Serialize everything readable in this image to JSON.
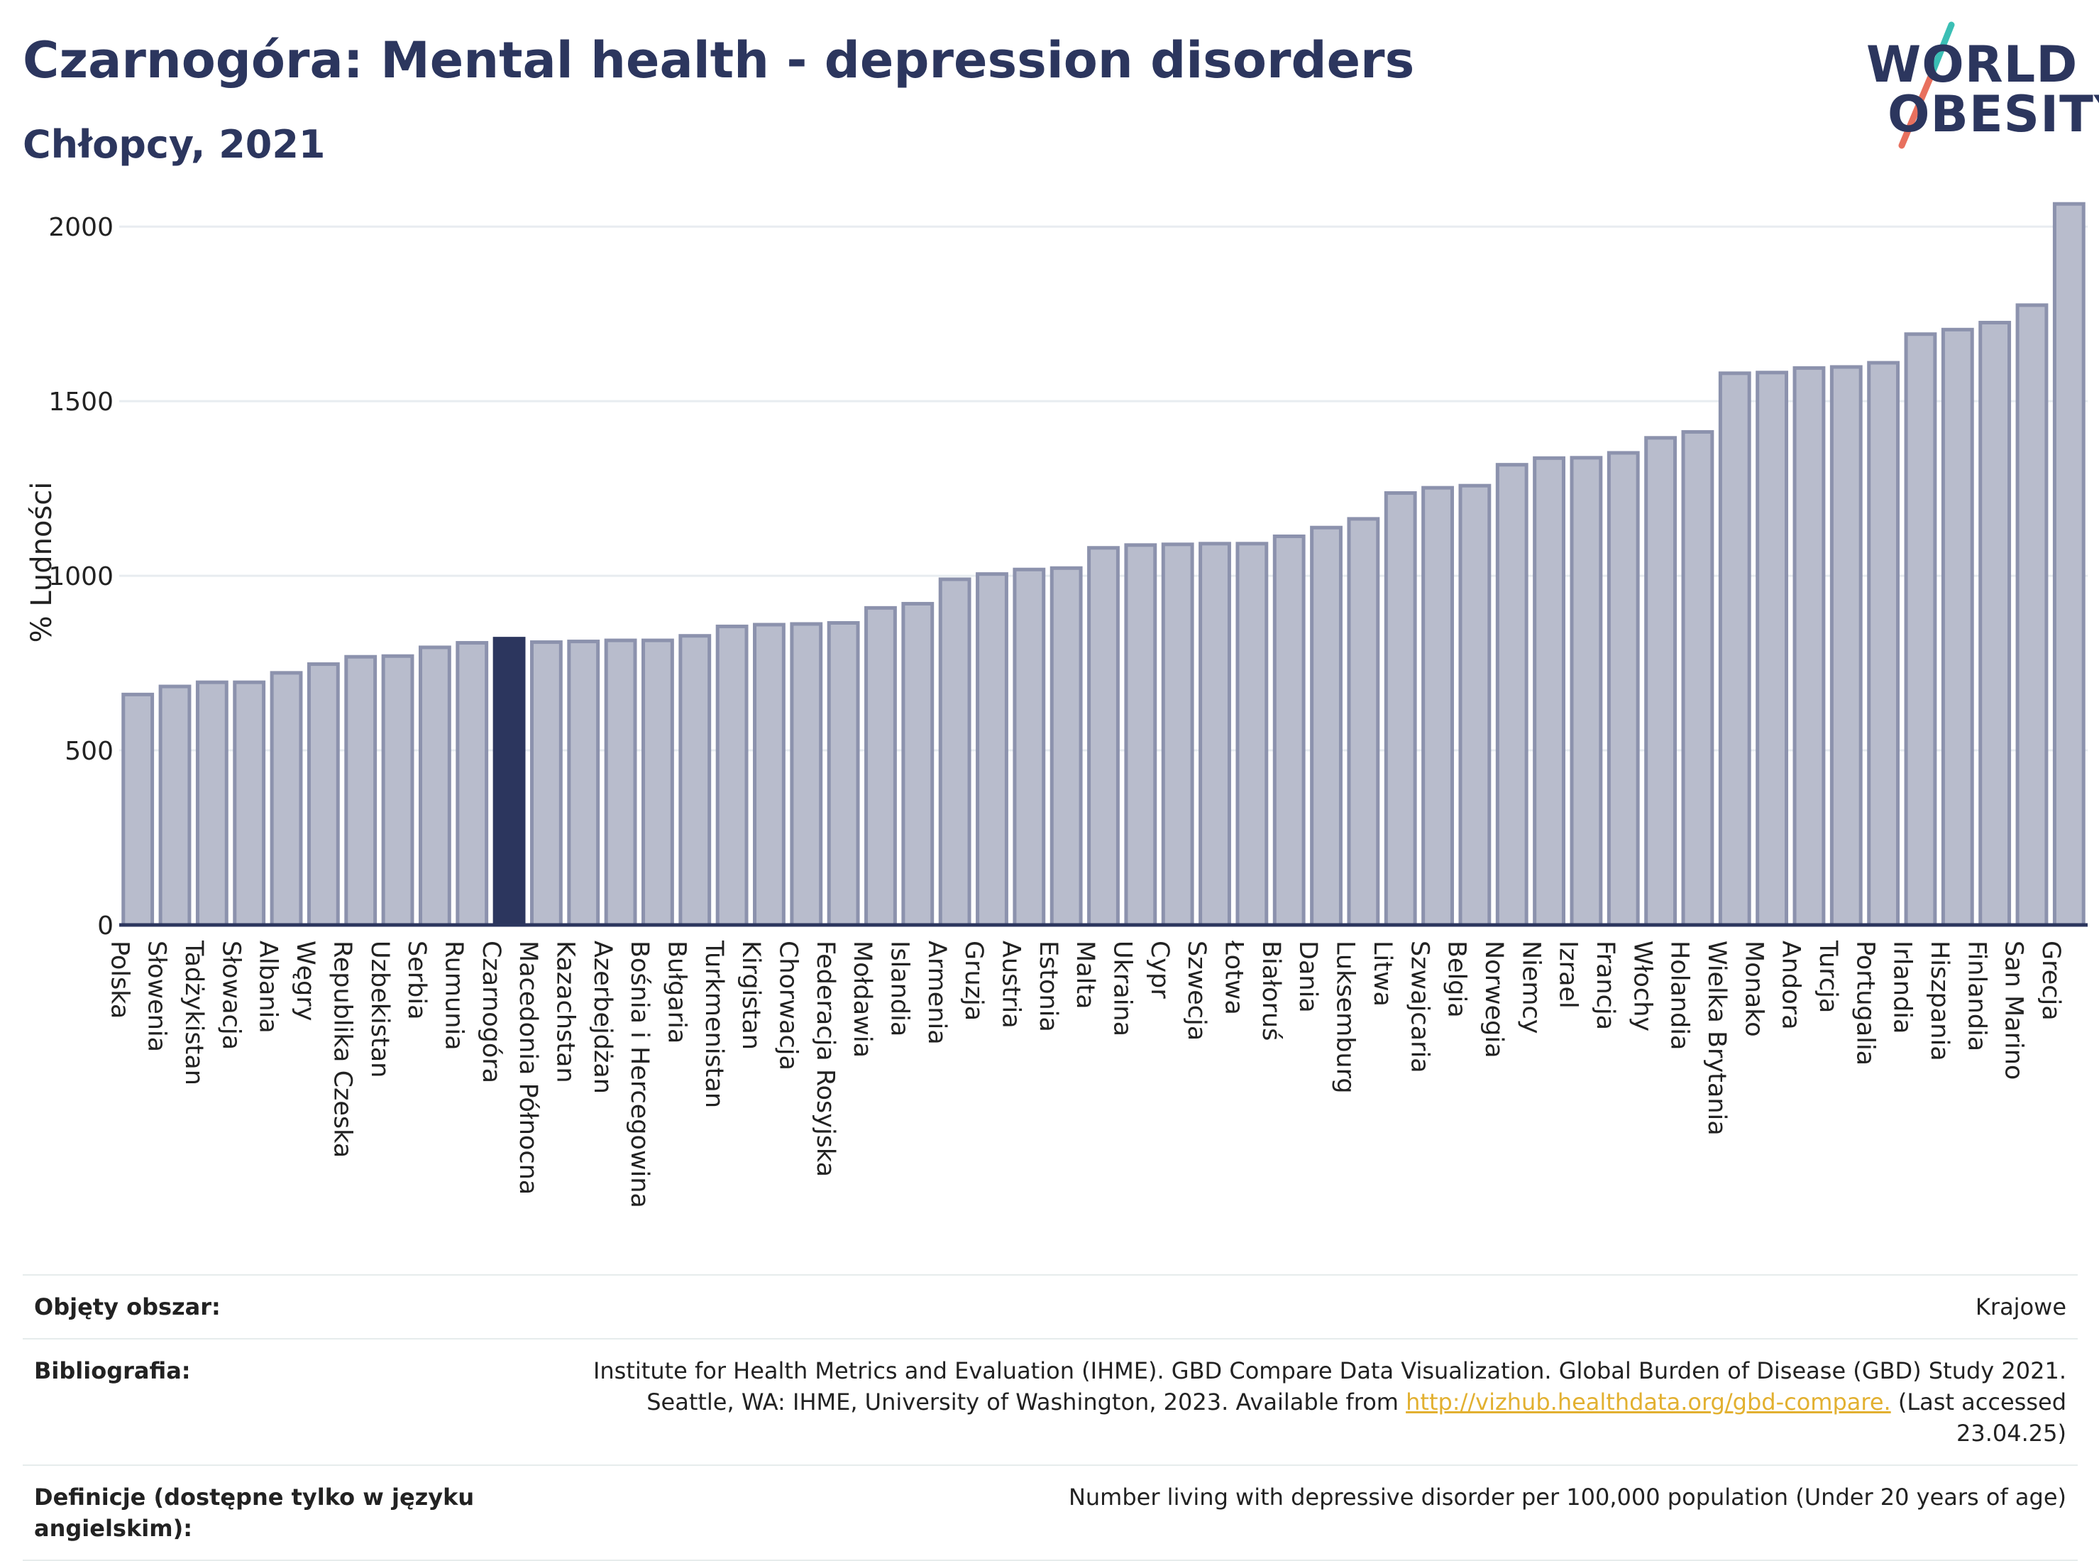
{
  "header": {
    "title": "Czarnogóra: Mental health - depression disorders",
    "subtitle": "Chłopcy, 2021"
  },
  "logo": {
    "line1": "WORLD",
    "line2": "OBESITY",
    "colors": {
      "teal": "#3bbfb5",
      "coral": "#e8705e",
      "navy": "#2c365e"
    }
  },
  "chart_data": {
    "type": "bar",
    "ylabel": "% Ludności",
    "ylim": [
      0,
      2100
    ],
    "yticks": [
      0,
      500,
      1000,
      1500,
      2000
    ],
    "grid": true,
    "highlight": "Czarnogóra",
    "colors": {
      "bar": "#b8bccc",
      "bar_edge": "#8c92ad",
      "highlight": "#2c365e"
    },
    "categories": [
      "Polska",
      "Słowenia",
      "Tadżykistan",
      "Słowacja",
      "Albania",
      "Węgry",
      "Republika Czeska",
      "Uzbekistan",
      "Serbia",
      "Rumunia",
      "Czarnogóra",
      "Macedonia Północna",
      "Kazachstan",
      "Azerbejdżan",
      "Bośnia i Hercegowina",
      "Bułgaria",
      "Turkmenistan",
      "Kirgistan",
      "Chorwacja",
      "Federacja Rosyjska",
      "Mołdawia",
      "Islandia",
      "Armenia",
      "Gruzja",
      "Austria",
      "Estonia",
      "Malta",
      "Ukraina",
      "Cypr",
      "Szwecja",
      "Łotwa",
      "Białoruś",
      "Dania",
      "Luksemburg",
      "Litwa",
      "Szwajcaria",
      "Belgia",
      "Norwegia",
      "Niemcy",
      "Izrael",
      "Francja",
      "Włochy",
      "Holandia",
      "Wielka Brytania",
      "Monako",
      "Andora",
      "Turcja",
      "Portugalia",
      "Irlandia",
      "Hiszpania",
      "Finlandia",
      "San Marino",
      "Grecja"
    ],
    "values": [
      660,
      683,
      695,
      695,
      722,
      747,
      768,
      770,
      795,
      808,
      820,
      810,
      812,
      815,
      815,
      828,
      855,
      860,
      862,
      865,
      908,
      920,
      990,
      1005,
      1018,
      1022,
      1080,
      1088,
      1090,
      1092,
      1092,
      1113,
      1138,
      1163,
      1237,
      1252,
      1258,
      1318,
      1337,
      1338,
      1352,
      1395,
      1412,
      1580,
      1582,
      1595,
      1598,
      1610,
      1692,
      1705,
      1725,
      1775,
      2065
    ]
  },
  "footer": {
    "rows": [
      {
        "label": "Objęty obszar:",
        "value": "Krajowe"
      },
      {
        "label": "Bibliografia:",
        "value_pre": "Institute for Health Metrics and Evaluation (IHME). GBD Compare Data Visualization. Global Burden of Disease (GBD) Study 2021. Seattle, WA: IHME, University of Washington, 2023. Available from ",
        "link": "http://vizhub.healthdata.org/gbd-compare.",
        "value_post": " (Last accessed 23.04.25)"
      },
      {
        "label": "Definicje (dostępne tylko w języku angielskim):",
        "value": "Number living with depressive disorder per 100,000 population (Under 20 years of age)"
      }
    ]
  }
}
